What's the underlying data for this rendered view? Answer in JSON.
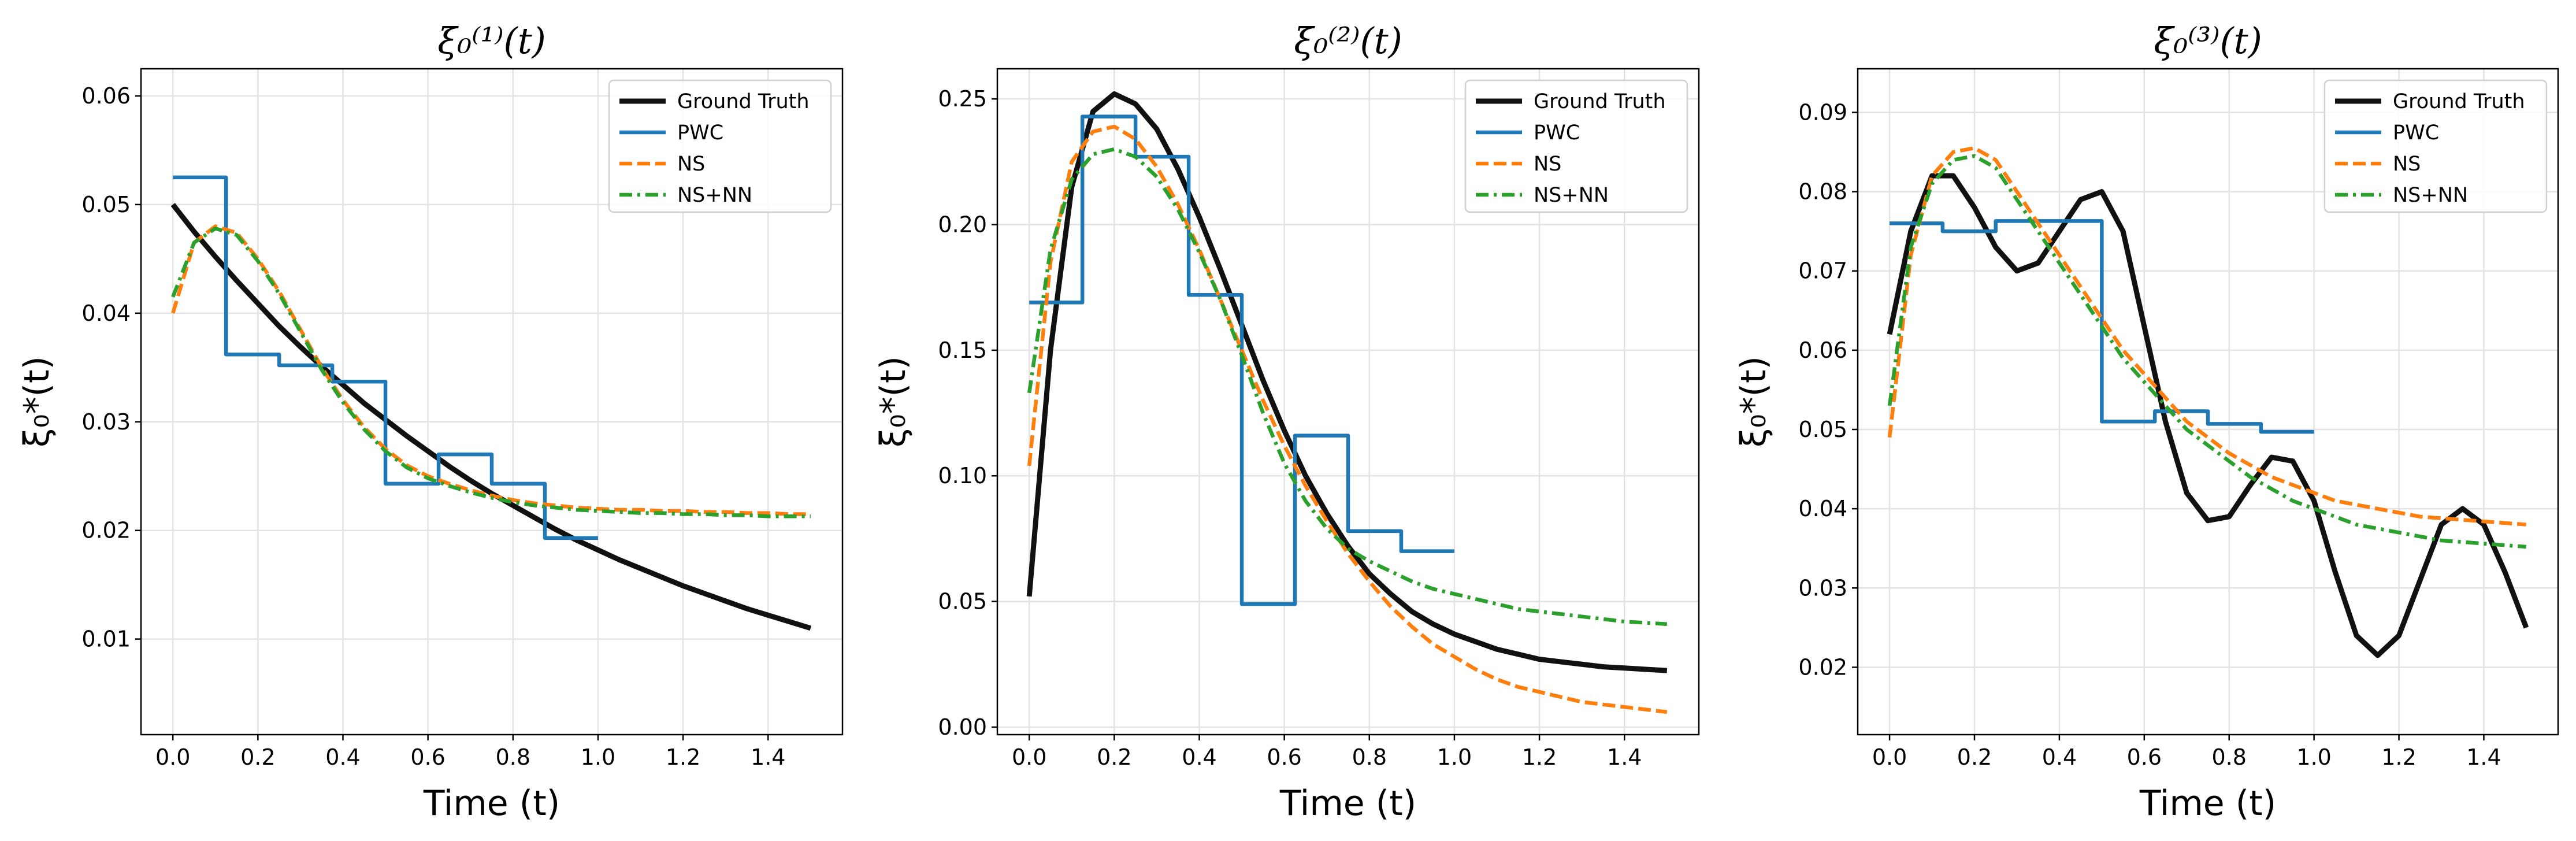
{
  "chart_data": [
    {
      "type": "line",
      "title": "ξ₀⁽¹⁾(t)",
      "xlabel": "Time (t)",
      "ylabel": "ξ₀*(t)",
      "legend": "upper right",
      "grid": true,
      "xlim": [
        -0.075,
        1.575
      ],
      "ylim": [
        0.0012,
        0.0625
      ],
      "xticks": [
        {
          "value": 0,
          "label": "0.0"
        },
        {
          "value": 0.2,
          "label": "0.2"
        },
        {
          "value": 0.4,
          "label": "0.4"
        },
        {
          "value": 0.6,
          "label": "0.6"
        },
        {
          "value": 0.8,
          "label": "0.8"
        },
        {
          "value": 1,
          "label": "1.0"
        },
        {
          "value": 1.2,
          "label": "1.2"
        },
        {
          "value": 1.4,
          "label": "1.4"
        }
      ],
      "yticks": [
        0.01,
        0.02,
        0.03,
        0.04,
        0.05,
        0.06
      ],
      "x": [
        0,
        0.05,
        0.1,
        0.15,
        0.2,
        0.25,
        0.3,
        0.35,
        0.4,
        0.45,
        0.5,
        0.55,
        0.6,
        0.65,
        0.7,
        0.75,
        0.8,
        0.85,
        0.9,
        0.95,
        1,
        1.05,
        1.1,
        1.15,
        1.2,
        1.25,
        1.3,
        1.35,
        1.4,
        1.45,
        1.5
      ],
      "series": [
        {
          "name": "Ground Truth",
          "color": "#111111",
          "linestyle": "solid",
          "values": [
            0.05,
            0.0475,
            0.0452,
            0.043,
            0.0409,
            0.0388,
            0.0369,
            0.0351,
            0.0334,
            0.0317,
            0.0302,
            0.0287,
            0.0273,
            0.0259,
            0.0246,
            0.0234,
            0.0223,
            0.0212,
            0.0201,
            0.0191,
            0.0182,
            0.0173,
            0.0165,
            0.0157,
            0.0149,
            0.0142,
            0.0135,
            0.0128,
            0.0122,
            0.0116,
            0.011
          ]
        },
        {
          "name": "PWC",
          "color": "#1f77b4",
          "linestyle": "steps-post",
          "x": [
            0,
            0.125,
            0.25,
            0.375,
            0.5,
            0.625,
            0.75,
            0.875,
            1
          ],
          "values": [
            0.0525,
            0.0362,
            0.0352,
            0.0337,
            0.0243,
            0.027,
            0.0243,
            0.0193,
            0.0193
          ]
        },
        {
          "name": "NS",
          "color": "#ff7f0e",
          "linestyle": "dashed",
          "values": [
            0.04,
            0.0465,
            0.048,
            0.0474,
            0.045,
            0.042,
            0.0385,
            0.035,
            0.032,
            0.0295,
            0.0275,
            0.026,
            0.025,
            0.0243,
            0.0237,
            0.0232,
            0.0228,
            0.0225,
            0.0223,
            0.0221,
            0.022,
            0.0219,
            0.0219,
            0.0218,
            0.0218,
            0.0217,
            0.0217,
            0.0216,
            0.0216,
            0.0215,
            0.0215
          ]
        },
        {
          "name": "NS+NN",
          "color": "#2ca02c",
          "linestyle": "dashdot",
          "values": [
            0.0415,
            0.0465,
            0.0478,
            0.0472,
            0.0448,
            0.0418,
            0.0383,
            0.0348,
            0.0318,
            0.0293,
            0.0273,
            0.0258,
            0.0248,
            0.0241,
            0.0235,
            0.023,
            0.0226,
            0.0223,
            0.0221,
            0.0219,
            0.0218,
            0.0217,
            0.0216,
            0.0216,
            0.0215,
            0.0215,
            0.0214,
            0.0214,
            0.0213,
            0.0213,
            0.0213
          ]
        }
      ]
    },
    {
      "type": "line",
      "title": "ξ₀⁽²⁾(t)",
      "xlabel": "Time (t)",
      "ylabel": "ξ₀*(t)",
      "legend": "upper right",
      "grid": true,
      "xlim": [
        -0.075,
        1.575
      ],
      "ylim": [
        -0.003,
        0.262
      ],
      "xticks": [
        {
          "value": 0,
          "label": "0.0"
        },
        {
          "value": 0.2,
          "label": "0.2"
        },
        {
          "value": 0.4,
          "label": "0.4"
        },
        {
          "value": 0.6,
          "label": "0.6"
        },
        {
          "value": 0.8,
          "label": "0.8"
        },
        {
          "value": 1,
          "label": "1.0"
        },
        {
          "value": 1.2,
          "label": "1.2"
        },
        {
          "value": 1.4,
          "label": "1.4"
        }
      ],
      "yticks": [
        {
          "value": 0,
          "label": "0.00"
        },
        {
          "value": 0.05,
          "label": "0.05"
        },
        {
          "value": 0.1,
          "label": "0.10"
        },
        {
          "value": 0.15,
          "label": "0.15"
        },
        {
          "value": 0.2,
          "label": "0.20"
        },
        {
          "value": 0.25,
          "label": "0.25"
        }
      ],
      "x": [
        0,
        0.05,
        0.1,
        0.15,
        0.2,
        0.25,
        0.3,
        0.35,
        0.4,
        0.45,
        0.5,
        0.55,
        0.6,
        0.65,
        0.7,
        0.75,
        0.8,
        0.85,
        0.9,
        0.95,
        1,
        1.05,
        1.1,
        1.15,
        1.2,
        1.25,
        1.3,
        1.35,
        1.4,
        1.45,
        1.5
      ],
      "series": [
        {
          "name": "Ground Truth",
          "color": "#111111",
          "linestyle": "solid",
          "values": [
            0.052,
            0.15,
            0.215,
            0.245,
            0.252,
            0.248,
            0.238,
            0.222,
            0.203,
            0.182,
            0.16,
            0.138,
            0.118,
            0.1,
            0.085,
            0.072,
            0.061,
            0.053,
            0.046,
            0.041,
            0.037,
            0.034,
            0.031,
            0.029,
            0.027,
            0.026,
            0.025,
            0.024,
            0.0235,
            0.023,
            0.0225
          ]
        },
        {
          "name": "PWC",
          "color": "#1f77b4",
          "linestyle": "steps-post",
          "x": [
            0,
            0.125,
            0.25,
            0.375,
            0.5,
            0.625,
            0.75,
            0.875,
            1
          ],
          "values": [
            0.169,
            0.243,
            0.227,
            0.172,
            0.049,
            0.116,
            0.078,
            0.07,
            0.07
          ]
        },
        {
          "name": "NS",
          "color": "#ff7f0e",
          "linestyle": "dashed",
          "values": [
            0.104,
            0.185,
            0.225,
            0.237,
            0.239,
            0.234,
            0.223,
            0.208,
            0.19,
            0.17,
            0.15,
            0.13,
            0.112,
            0.096,
            0.082,
            0.069,
            0.058,
            0.048,
            0.04,
            0.033,
            0.028,
            0.023,
            0.019,
            0.016,
            0.014,
            0.012,
            0.01,
            0.009,
            0.008,
            0.007,
            0.006
          ]
        },
        {
          "name": "NS+NN",
          "color": "#2ca02c",
          "linestyle": "dashdot",
          "values": [
            0.133,
            0.19,
            0.218,
            0.228,
            0.23,
            0.227,
            0.219,
            0.206,
            0.189,
            0.17,
            0.148,
            0.125,
            0.105,
            0.09,
            0.079,
            0.071,
            0.066,
            0.062,
            0.058,
            0.055,
            0.053,
            0.051,
            0.049,
            0.047,
            0.046,
            0.045,
            0.044,
            0.043,
            0.042,
            0.0415,
            0.041
          ]
        }
      ]
    },
    {
      "type": "line",
      "title": "ξ₀⁽³⁾(t)",
      "xlabel": "Time (t)",
      "ylabel": "ξ₀*(t)",
      "legend": "upper right",
      "grid": true,
      "xlim": [
        -0.075,
        1.575
      ],
      "ylim": [
        0.0115,
        0.0955
      ],
      "xticks": [
        {
          "value": 0,
          "label": "0.0"
        },
        {
          "value": 0.2,
          "label": "0.2"
        },
        {
          "value": 0.4,
          "label": "0.4"
        },
        {
          "value": 0.6,
          "label": "0.6"
        },
        {
          "value": 0.8,
          "label": "0.8"
        },
        {
          "value": 1,
          "label": "1.0"
        },
        {
          "value": 1.2,
          "label": "1.2"
        },
        {
          "value": 1.4,
          "label": "1.4"
        }
      ],
      "yticks": [
        0.02,
        0.03,
        0.04,
        0.05,
        0.06,
        0.07,
        0.08,
        0.09
      ],
      "x": [
        0,
        0.05,
        0.1,
        0.15,
        0.2,
        0.25,
        0.3,
        0.35,
        0.4,
        0.45,
        0.5,
        0.55,
        0.6,
        0.65,
        0.7,
        0.75,
        0.8,
        0.85,
        0.9,
        0.95,
        1,
        1.05,
        1.1,
        1.15,
        1.2,
        1.25,
        1.3,
        1.35,
        1.4,
        1.45,
        1.5
      ],
      "series": [
        {
          "name": "Ground Truth",
          "color": "#111111",
          "linestyle": "solid",
          "values": [
            0.062,
            0.075,
            0.082,
            0.082,
            0.078,
            0.073,
            0.07,
            0.071,
            0.075,
            0.079,
            0.08,
            0.075,
            0.063,
            0.051,
            0.042,
            0.0385,
            0.039,
            0.043,
            0.0465,
            0.046,
            0.041,
            0.032,
            0.024,
            0.0215,
            0.024,
            0.031,
            0.038,
            0.04,
            0.038,
            0.032,
            0.025
          ]
        },
        {
          "name": "PWC",
          "color": "#1f77b4",
          "linestyle": "steps-post",
          "x": [
            0,
            0.125,
            0.25,
            0.375,
            0.5,
            0.625,
            0.75,
            0.875,
            1
          ],
          "values": [
            0.076,
            0.075,
            0.0763,
            0.0763,
            0.051,
            0.0523,
            0.0507,
            0.0497,
            0.0497
          ]
        },
        {
          "name": "NS",
          "color": "#ff7f0e",
          "linestyle": "dashed",
          "values": [
            0.049,
            0.072,
            0.082,
            0.085,
            0.0855,
            0.084,
            0.08,
            0.076,
            0.072,
            0.068,
            0.064,
            0.06,
            0.057,
            0.054,
            0.051,
            0.049,
            0.047,
            0.0455,
            0.044,
            0.043,
            0.042,
            0.041,
            0.0405,
            0.04,
            0.0395,
            0.039,
            0.0388,
            0.0386,
            0.0384,
            0.0382,
            0.038
          ]
        },
        {
          "name": "NS+NN",
          "color": "#2ca02c",
          "linestyle": "dashdot",
          "values": [
            0.053,
            0.073,
            0.081,
            0.084,
            0.0845,
            0.083,
            0.079,
            0.075,
            0.071,
            0.067,
            0.063,
            0.059,
            0.056,
            0.053,
            0.05,
            0.048,
            0.046,
            0.044,
            0.0425,
            0.041,
            0.04,
            0.039,
            0.038,
            0.0375,
            0.037,
            0.0365,
            0.036,
            0.0358,
            0.0356,
            0.0354,
            0.0352
          ]
        }
      ]
    }
  ]
}
